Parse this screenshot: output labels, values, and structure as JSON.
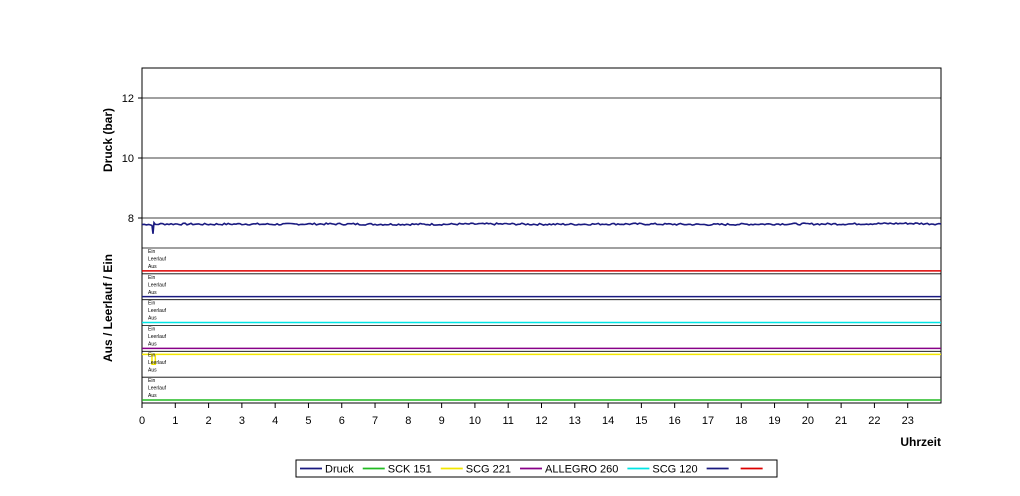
{
  "chart_data": {
    "type": "line",
    "xlabel": "Uhrzeit",
    "xlim": [
      0,
      24
    ],
    "x_ticks": [
      "0",
      "1",
      "2",
      "3",
      "4",
      "5",
      "6",
      "7",
      "8",
      "9",
      "10",
      "11",
      "12",
      "13",
      "14",
      "15",
      "16",
      "17",
      "18",
      "19",
      "20",
      "21",
      "22",
      "23"
    ],
    "upper_panel": {
      "ylabel": "Druck (bar)",
      "ylim": [
        7,
        13
      ],
      "y_ticks": [
        "8",
        "10",
        "12"
      ],
      "grid": true,
      "series": [
        {
          "name": "Druck",
          "color": "#1a1a80",
          "x": [
            0,
            0.2,
            0.3,
            0.33,
            0.36,
            0.4,
            0.5,
            1,
            2,
            3,
            4,
            5,
            6,
            7,
            8,
            9,
            10,
            11,
            12,
            13,
            14,
            15,
            16,
            17,
            18,
            19,
            20,
            21,
            22,
            23,
            24
          ],
          "y": [
            7.78,
            7.8,
            7.75,
            7.5,
            7.82,
            7.78,
            7.8,
            7.8,
            7.79,
            7.8,
            7.79,
            7.8,
            7.8,
            7.79,
            7.79,
            7.79,
            7.8,
            7.8,
            7.79,
            7.79,
            7.8,
            7.8,
            7.79,
            7.78,
            7.79,
            7.8,
            7.8,
            7.8,
            7.81,
            7.82,
            7.8
          ]
        }
      ]
    },
    "lower_panel": {
      "ylabel": "Aus / Leerlauf / Ein",
      "state_labels": [
        "Ein",
        "Leerlauf",
        "Aus"
      ],
      "series": [
        {
          "name": "",
          "color": "#dd0000",
          "state": "Aus"
        },
        {
          "name": "",
          "color": "#1a1a80",
          "state": "Aus"
        },
        {
          "name": "SCG 120",
          "color": "#00e5e5",
          "state": "Aus"
        },
        {
          "name": "ALLEGRO 260",
          "color": "#880088",
          "state": "Aus"
        },
        {
          "name": "SCG 221",
          "color": "#f2e600",
          "state": "Ein",
          "events": [
            {
              "x": [
                0.3,
                0.4
              ],
              "state": "Leerlauf"
            }
          ]
        },
        {
          "name": "SCK 151",
          "color": "#22bb22",
          "state": "Aus"
        }
      ]
    },
    "legend": {
      "placement": "bottom",
      "entries": [
        {
          "label": "Druck",
          "color": "#1a1a80"
        },
        {
          "label": "SCK 151",
          "color": "#22bb22"
        },
        {
          "label": "SCG 221",
          "color": "#f2e600"
        },
        {
          "label": "ALLEGRO 260",
          "color": "#880088"
        },
        {
          "label": "SCG 120",
          "color": "#00e5e5"
        },
        {
          "label": "",
          "color": "#1a1a80"
        },
        {
          "label": "",
          "color": "#dd0000"
        }
      ]
    }
  }
}
